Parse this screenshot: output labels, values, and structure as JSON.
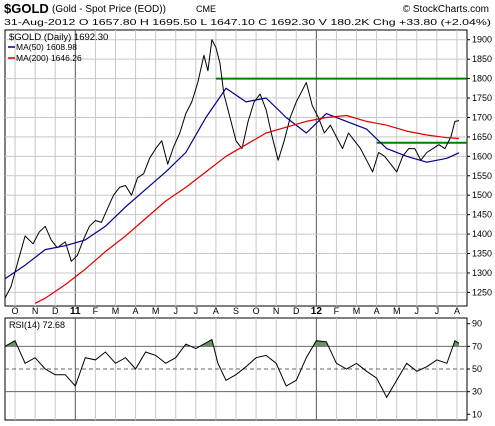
{
  "header": {
    "symbol": "$GOLD",
    "name": "(Gold - Spot Price (EOD))",
    "exchange": "CME",
    "watermark": "© StockCharts.com",
    "quote": "31-Aug-2012   O 1657.80   H 1695.50   L 1647.10   C 1692.30   V 180.2K   Chg +33.80 (+2.04%)"
  },
  "colors": {
    "price": "#000000",
    "ma50": "#00008b",
    "ma200": "#e00000",
    "resistance": "#008000",
    "rsi_fill": "#6b8e6b",
    "grid": "#c8c8c8",
    "major_month": "#555555"
  },
  "chart_data": [
    {
      "type": "line",
      "title": "$GOLD (Daily) 1692.30",
      "legend": [
        {
          "name": "MA(50) 1608.98",
          "color": "#00008b"
        },
        {
          "name": "MA(200) 1646.26",
          "color": "#e00000"
        }
      ],
      "legend_position": "top-left",
      "x_ticks": [
        "O",
        "N",
        "D",
        "11",
        "F",
        "M",
        "A",
        "M",
        "J",
        "J",
        "A",
        "S",
        "O",
        "N",
        "D",
        "12",
        "F",
        "M",
        "A",
        "M",
        "J",
        "J",
        "A"
      ],
      "x_major": [
        "11",
        "12"
      ],
      "y_ticks": [
        1250,
        1300,
        1350,
        1400,
        1450,
        1500,
        1550,
        1600,
        1650,
        1700,
        1750,
        1800,
        1850,
        1900
      ],
      "ylim": [
        1215,
        1925
      ],
      "xlim": [
        0,
        23
      ],
      "grid": true,
      "series": [
        {
          "role": "price",
          "x": [
            0,
            0.3,
            0.7,
            1.0,
            1.4,
            1.7,
            2.0,
            2.3,
            2.6,
            3.0,
            3.3,
            3.6,
            3.9,
            4.2,
            4.5,
            4.8,
            5.1,
            5.4,
            5.7,
            6.0,
            6.3,
            6.6,
            6.9,
            7.2,
            7.5,
            7.8,
            8.1,
            8.4,
            8.7,
            9.0,
            9.3,
            9.6,
            9.9,
            10.1,
            10.3,
            10.5,
            10.7,
            10.9,
            11.2,
            11.5,
            11.8,
            12.1,
            12.4,
            12.7,
            13.0,
            13.3,
            13.6,
            13.9,
            14.2,
            14.5,
            14.8,
            15.0,
            15.3,
            15.6,
            15.9,
            16.2,
            16.5,
            16.8,
            17.1,
            17.4,
            17.7,
            18.0,
            18.3,
            18.6,
            18.9,
            19.2,
            19.5,
            19.8,
            20.1,
            20.4,
            20.7,
            21.0,
            21.3,
            21.6,
            21.9,
            22.2,
            22.4,
            22.6
          ],
          "y": [
            1235,
            1265,
            1340,
            1395,
            1375,
            1405,
            1420,
            1385,
            1365,
            1380,
            1330,
            1345,
            1385,
            1420,
            1435,
            1430,
            1465,
            1500,
            1520,
            1525,
            1500,
            1545,
            1555,
            1595,
            1620,
            1640,
            1580,
            1625,
            1660,
            1710,
            1740,
            1790,
            1860,
            1820,
            1900,
            1880,
            1840,
            1760,
            1700,
            1640,
            1620,
            1690,
            1740,
            1760,
            1720,
            1650,
            1590,
            1640,
            1700,
            1740,
            1770,
            1790,
            1730,
            1700,
            1660,
            1680,
            1650,
            1620,
            1660,
            1640,
            1620,
            1590,
            1560,
            1610,
            1600,
            1580,
            1560,
            1600,
            1620,
            1620,
            1590,
            1610,
            1620,
            1630,
            1620,
            1650,
            1690,
            1692
          ]
        },
        {
          "name": "MA(50)",
          "x": [
            0,
            1,
            2,
            3,
            4,
            5,
            6,
            7,
            8,
            9,
            10,
            11,
            12,
            13,
            14,
            15,
            16,
            17,
            18,
            19,
            20,
            21,
            22,
            22.6
          ],
          "y": [
            1285,
            1320,
            1360,
            1370,
            1385,
            1420,
            1470,
            1515,
            1560,
            1610,
            1700,
            1775,
            1740,
            1750,
            1700,
            1660,
            1710,
            1690,
            1670,
            1620,
            1600,
            1585,
            1595,
            1609
          ]
        },
        {
          "name": "MA(200)",
          "x": [
            1.5,
            2,
            3,
            4,
            5,
            6,
            7,
            8,
            9,
            10,
            11,
            12,
            13,
            14,
            15,
            16,
            17,
            18,
            19,
            20,
            21,
            22,
            22.6
          ],
          "y": [
            1222,
            1235,
            1270,
            1310,
            1355,
            1395,
            1440,
            1485,
            1520,
            1560,
            1600,
            1630,
            1660,
            1675,
            1690,
            1700,
            1705,
            1690,
            1680,
            1665,
            1655,
            1648,
            1646
          ]
        }
      ],
      "annotations": [
        {
          "type": "horizontal-line",
          "y": 1800,
          "x_start": 10.5,
          "x_end": 23
        },
        {
          "type": "horizontal-line",
          "y": 1635,
          "x_start": 18.5,
          "x_end": 23
        }
      ]
    },
    {
      "type": "line",
      "title": "RSI(14) 72.68",
      "y_ticks": [
        10,
        30,
        50,
        70,
        90
      ],
      "reference_lines": [
        30,
        50,
        70
      ],
      "ylim": [
        5,
        95
      ],
      "xlim": [
        0,
        23
      ],
      "series": [
        {
          "name": "RSI(14)",
          "x": [
            0,
            0.5,
            1,
            1.5,
            2,
            2.5,
            3,
            3.5,
            4,
            4.5,
            5,
            5.5,
            6,
            6.5,
            7,
            7.5,
            8,
            8.5,
            9,
            9.5,
            10,
            10.3,
            10.6,
            11,
            11.5,
            12,
            12.5,
            13,
            13.5,
            14,
            14.5,
            15,
            15.5,
            16,
            16.5,
            17,
            17.5,
            18,
            18.5,
            19,
            19.5,
            20,
            20.5,
            21,
            21.5,
            22,
            22.4,
            22.6
          ],
          "y": [
            70,
            75,
            55,
            60,
            50,
            45,
            45,
            35,
            60,
            58,
            65,
            55,
            60,
            50,
            65,
            62,
            55,
            60,
            72,
            68,
            73,
            76,
            55,
            40,
            45,
            52,
            60,
            62,
            55,
            35,
            40,
            60,
            75,
            74,
            55,
            50,
            55,
            48,
            42,
            25,
            40,
            55,
            48,
            52,
            58,
            55,
            75,
            72.68
          ]
        }
      ]
    }
  ]
}
